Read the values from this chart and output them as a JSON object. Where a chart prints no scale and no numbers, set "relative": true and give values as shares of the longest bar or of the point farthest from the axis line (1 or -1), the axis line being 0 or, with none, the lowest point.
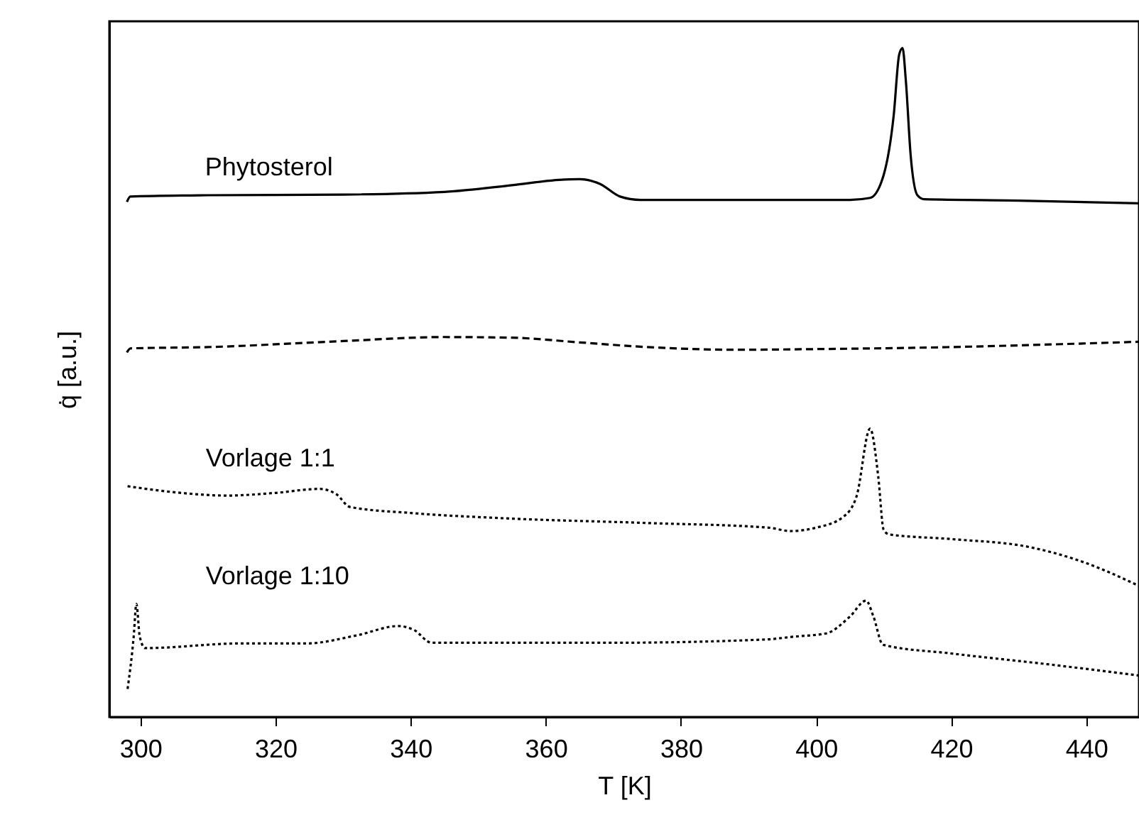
{
  "chart_data": {
    "type": "line",
    "xlabel": "T [K]",
    "ylabel": "q̇ [a.u.]",
    "relative": true,
    "xlim": [
      295.4,
      447.8
    ],
    "xticks": [
      300,
      320,
      340,
      360,
      380,
      400,
      420,
      440
    ],
    "grid": false,
    "marker": "none",
    "series": [
      {
        "name": "Phytosterol",
        "color": "#000000",
        "line_style": "solid",
        "x": [
          298.0,
          298.5,
          310,
          330,
          345,
          355,
          362,
          365,
          368,
          371,
          374,
          390,
          405,
          408,
          410,
          411.5,
          412.3,
          412.8,
          413.3,
          414,
          415,
          416,
          430,
          447.8
        ],
        "values": [
          0.77,
          0.778,
          0.78,
          0.781,
          0.785,
          0.795,
          0.803,
          0.804,
          0.797,
          0.778,
          0.773,
          0.773,
          0.773,
          0.776,
          0.81,
          0.9,
          0.99,
          1.0,
          0.95,
          0.84,
          0.78,
          0.774,
          0.772,
          0.768
        ]
      },
      {
        "color": "#000000",
        "line_style": "dashed",
        "x": [
          298,
          298.5,
          310,
          330,
          345,
          355,
          365,
          375,
          388,
          400,
          420,
          435,
          447.8
        ],
        "values": [
          0.545,
          0.551,
          0.553,
          0.562,
          0.568,
          0.567,
          0.56,
          0.553,
          0.549,
          0.55,
          0.553,
          0.557,
          0.561
        ]
      },
      {
        "name": "Vorlage 1:1",
        "color": "#000000",
        "line_style": "dotted",
        "x": [
          298.1,
          305,
          312.8,
          320,
          326.5,
          329,
          331,
          340,
          354,
          375,
          393,
          396.2,
          400,
          404,
          406,
          408,
          409.2,
          410,
          410.8,
          420,
          431.6,
          440,
          447.8
        ],
        "values": [
          0.345,
          0.336,
          0.331,
          0.335,
          0.341,
          0.333,
          0.314,
          0.305,
          0.297,
          0.29,
          0.283,
          0.278,
          0.283,
          0.299,
          0.33,
          0.431,
          0.36,
          0.28,
          0.273,
          0.266,
          0.254,
          0.23,
          0.196
        ]
      },
      {
        "name": "Vorlage 1:10",
        "color": "#000000",
        "line_style": "dotted",
        "x": [
          298.1,
          299.0,
          299.4,
          299.9,
          300.7,
          314.9,
          324.6,
          332,
          338.2,
          340.5,
          343.1,
          370,
          392.7,
          396.6,
          401.5,
          405,
          407.4,
          408.5,
          409.9,
          420,
          435,
          447.8
        ],
        "values": [
          0.042,
          0.12,
          0.169,
          0.12,
          0.103,
          0.11,
          0.11,
          0.122,
          0.136,
          0.13,
          0.111,
          0.111,
          0.116,
          0.12,
          0.125,
          0.15,
          0.174,
          0.15,
          0.108,
          0.095,
          0.078,
          0.062
        ]
      }
    ]
  }
}
